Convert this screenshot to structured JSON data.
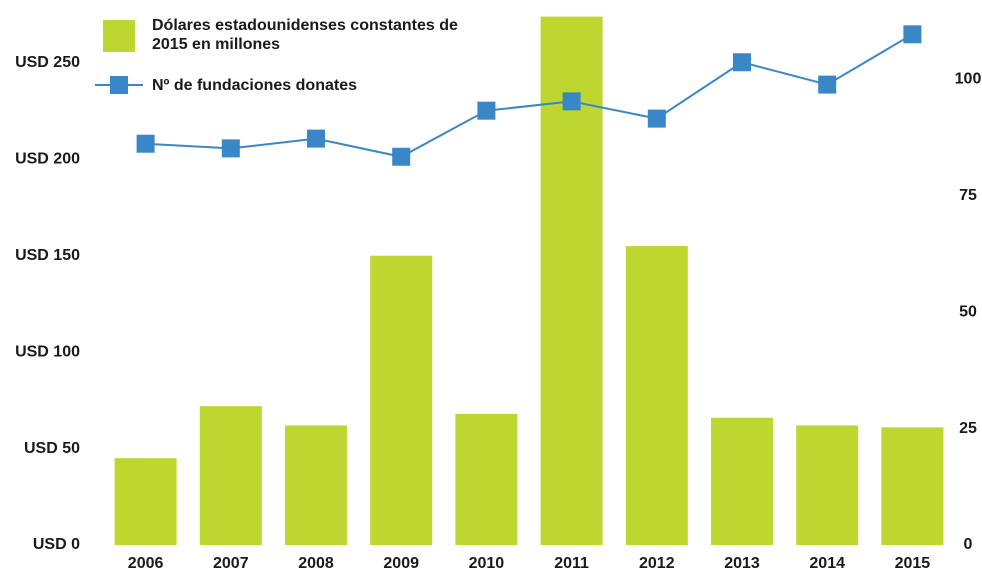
{
  "chart_data": {
    "type": "bar_line",
    "categories": [
      "2006",
      "2007",
      "2008",
      "2009",
      "2010",
      "2011",
      "2012",
      "2013",
      "2014",
      "2015"
    ],
    "series": [
      {
        "name": "Dólares estadounidenses constantes de 2015 en millones",
        "type": "bar",
        "color": "#bdd630",
        "values": [
          45,
          72,
          62,
          150,
          68,
          274,
          155,
          66,
          62,
          61
        ]
      },
      {
        "name": "Nº de fundaciones donates",
        "type": "line",
        "color": "#3a87c8",
        "axis": "y2",
        "values": [
          86.2,
          85.2,
          87.3,
          83.4,
          93.3,
          95.3,
          91.6,
          103.7,
          98.9,
          109.7
        ]
      }
    ],
    "ylim": [
      0,
      280
    ],
    "yticks": [
      {
        "value": 0,
        "label": "USD 0"
      },
      {
        "value": 50,
        "label": "USD 50"
      },
      {
        "value": 100,
        "label": "USD 100"
      },
      {
        "value": 150,
        "label": "USD 150"
      },
      {
        "value": 200,
        "label": "USD 200"
      },
      {
        "value": 250,
        "label": "USD 250"
      }
    ],
    "y2lim": [
      0,
      116
    ],
    "y2ticks": [
      0,
      25,
      50,
      75,
      100
    ]
  }
}
